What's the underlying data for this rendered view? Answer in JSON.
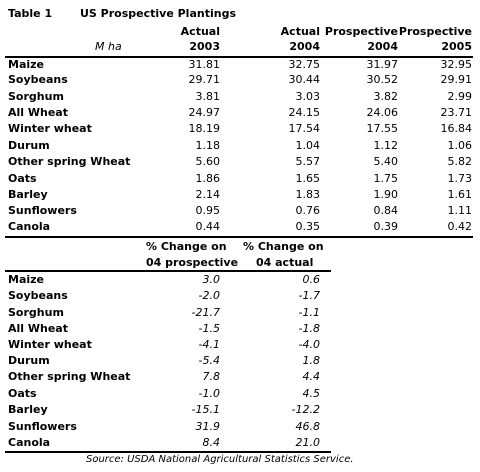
{
  "table_label": "Table 1",
  "title": "US Prospective Plantings",
  "unit": "M ha",
  "top": {
    "headers": [
      {
        "line1": "Actual",
        "line2": "2003"
      },
      {
        "line1": "Actual",
        "line2": "2004"
      },
      {
        "line1": "Prospective",
        "line2": "2004"
      },
      {
        "line1": "Prospective",
        "line2": "2005"
      }
    ],
    "rows": [
      {
        "crop": "Maize",
        "values": [
          "31.81",
          "32.75",
          "31.97",
          "32.95"
        ]
      },
      {
        "crop": "Soybeans",
        "values": [
          "29.71",
          "30.44",
          "30.52",
          "29.91"
        ]
      },
      {
        "crop": "Sorghum",
        "values": [
          "3.81",
          "3.03",
          "3.82",
          "2.99"
        ]
      },
      {
        "crop": "All Wheat",
        "values": [
          "24.97",
          "24.15",
          "24.06",
          "23.71"
        ]
      },
      {
        "crop": "Winter wheat",
        "values": [
          "18.19",
          "17.54",
          "17.55",
          "16.84"
        ]
      },
      {
        "crop": "Durum",
        "values": [
          "1.18",
          "1.04",
          "1.12",
          "1.06"
        ]
      },
      {
        "crop": "Other spring Wheat",
        "values": [
          "5.60",
          "5.57",
          "5.40",
          "5.82"
        ]
      },
      {
        "crop": "Oats",
        "values": [
          "1.86",
          "1.65",
          "1.75",
          "1.73"
        ]
      },
      {
        "crop": "Barley",
        "values": [
          "2.14",
          "1.83",
          "1.90",
          "1.61"
        ]
      },
      {
        "crop": "Sunflowers",
        "values": [
          "0.95",
          "0.76",
          "0.84",
          "1.11"
        ]
      },
      {
        "crop": "Canola",
        "values": [
          "0.44",
          "0.35",
          "0.39",
          "0.42"
        ]
      }
    ]
  },
  "bottom": {
    "headers": [
      {
        "line1": "% Change on",
        "line2": "04 prospective"
      },
      {
        "line1": "% Change on",
        "line2": "04 actual"
      }
    ],
    "rows": [
      {
        "crop": "Maize",
        "values": [
          "3.0",
          "0.6"
        ]
      },
      {
        "crop": "Soybeans",
        "values": [
          "-2.0",
          "-1.7"
        ]
      },
      {
        "crop": "Sorghum",
        "values": [
          "-21.7",
          "-1.1"
        ]
      },
      {
        "crop": "All Wheat",
        "values": [
          "-1.5",
          "-1.8"
        ]
      },
      {
        "crop": "Winter wheat",
        "values": [
          "-4.1",
          "-4.0"
        ]
      },
      {
        "crop": "Durum",
        "values": [
          "-5.4",
          "1.8"
        ]
      },
      {
        "crop": "Other spring Wheat",
        "values": [
          "7.8",
          "4.4"
        ]
      },
      {
        "crop": "Oats",
        "values": [
          "-1.0",
          "4.5"
        ]
      },
      {
        "crop": "Barley",
        "values": [
          "-15.1",
          "-12.2"
        ]
      },
      {
        "crop": "Sunflowers",
        "values": [
          "31.9",
          "46.8"
        ]
      },
      {
        "crop": "Canola",
        "values": [
          "8.4",
          "21.0"
        ]
      }
    ]
  },
  "source": "Source: USDA National Agricultural Statistics Service."
}
